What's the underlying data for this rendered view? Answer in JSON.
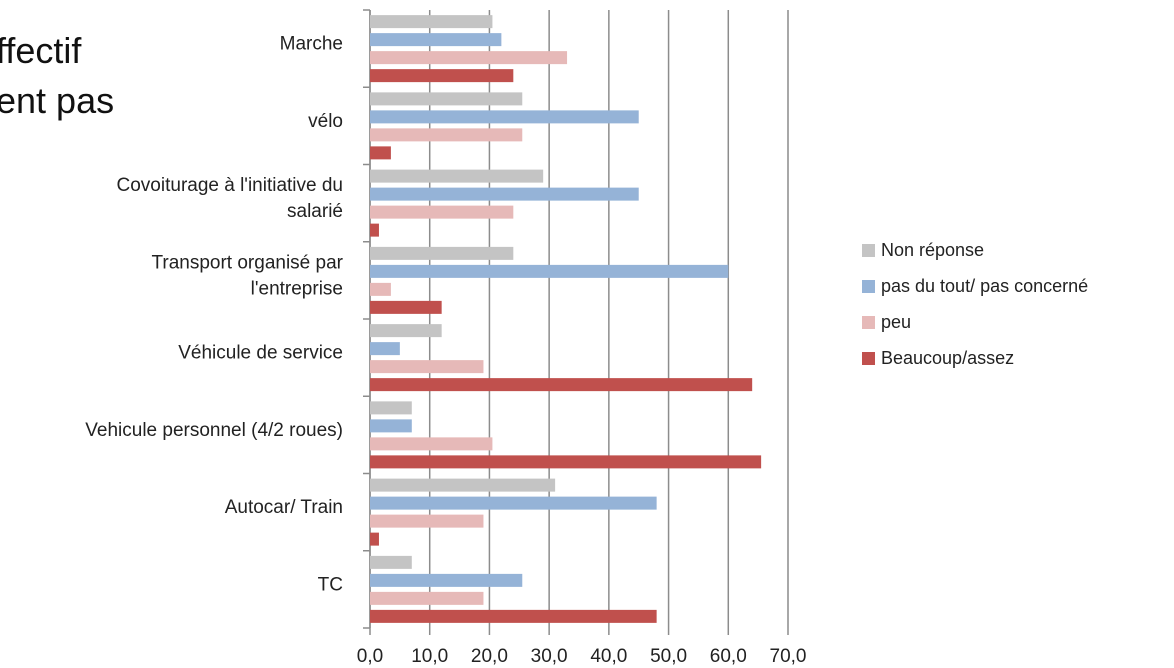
{
  "title_fragment": [
    "ffectif",
    "ent pas"
  ],
  "chart_data": {
    "type": "bar",
    "orientation": "horizontal",
    "categories": [
      [
        "Marche"
      ],
      [
        "vélo"
      ],
      [
        "Covoiturage à l'initiative du",
        "salarié"
      ],
      [
        "Transport organisé par",
        "l'entreprise"
      ],
      [
        "Véhicule de service"
      ],
      [
        "Vehicule personnel (4/2 roues)"
      ],
      [
        "Autocar/ Train"
      ],
      [
        "TC"
      ]
    ],
    "series": [
      {
        "name": "Non réponse",
        "color": "#c4c4c4",
        "values": [
          20.5,
          25.5,
          29,
          24,
          12,
          7,
          31,
          7
        ]
      },
      {
        "name": "pas du tout/ pas concerné",
        "color": "#95b3d7",
        "values": [
          22,
          45,
          45,
          60,
          5,
          7,
          48,
          25.5
        ]
      },
      {
        "name": "peu",
        "color": "#e6b9b8",
        "values": [
          33,
          25.5,
          24,
          3.5,
          19,
          20.5,
          19,
          19
        ]
      },
      {
        "name": "Beaucoup/assez",
        "color": "#c0504d",
        "values": [
          24,
          3.5,
          1.5,
          12,
          64,
          65.5,
          1.5,
          48
        ]
      }
    ],
    "xlim": [
      0,
      70
    ],
    "xticks": [
      "0,0",
      "10,0",
      "20,0",
      "30,0",
      "40,0",
      "50,0",
      "60,0",
      "70,0"
    ],
    "grid": true,
    "legend_position": "right"
  }
}
